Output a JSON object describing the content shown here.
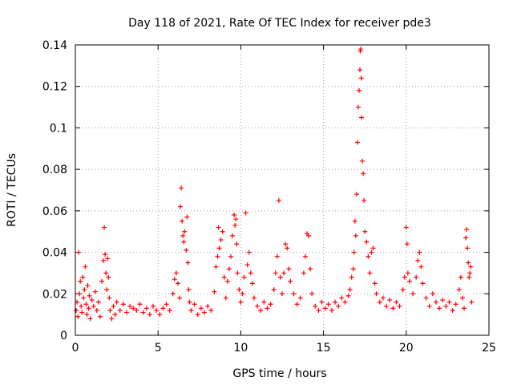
{
  "chart_data": {
    "type": "scatter",
    "title": "Day 118 of 2021, Rate Of TEC Index for receiver pde3",
    "xlabel": "GPS time / hours",
    "ylabel": "ROTI / TECUs",
    "xlim": [
      0,
      25
    ],
    "ylim": [
      0,
      0.14
    ],
    "x_ticks": [
      0,
      5,
      10,
      15,
      20,
      25
    ],
    "y_ticks": [
      0,
      0.02,
      0.04,
      0.06,
      0.08,
      0.1,
      0.12,
      0.14
    ],
    "x_tick_labels": [
      "0",
      "5",
      "10",
      "15",
      "20",
      "25"
    ],
    "y_tick_labels": [
      "0",
      "0.02",
      "0.04",
      "0.06",
      "0.08",
      "0.1",
      "0.12",
      "0.14"
    ],
    "grid": true,
    "marker": "+",
    "color": "#ff0000",
    "series": [
      {
        "name": "ROTI",
        "points": [
          [
            0.05,
            0.012
          ],
          [
            0.1,
            0.016
          ],
          [
            0.15,
            0.009
          ],
          [
            0.2,
            0.04
          ],
          [
            0.25,
            0.02
          ],
          [
            0.3,
            0.026
          ],
          [
            0.35,
            0.014
          ],
          [
            0.4,
            0.011
          ],
          [
            0.45,
            0.028
          ],
          [
            0.5,
            0.018
          ],
          [
            0.55,
            0.022
          ],
          [
            0.6,
            0.033
          ],
          [
            0.65,
            0.015
          ],
          [
            0.7,
            0.01
          ],
          [
            0.75,
            0.024
          ],
          [
            0.8,
            0.013
          ],
          [
            0.85,
            0.019
          ],
          [
            0.9,
            0.008
          ],
          [
            1.0,
            0.017
          ],
          [
            1.1,
            0.014
          ],
          [
            1.2,
            0.021
          ],
          [
            1.3,
            0.012
          ],
          [
            1.4,
            0.016
          ],
          [
            1.5,
            0.009
          ],
          [
            1.6,
            0.026
          ],
          [
            1.7,
            0.036
          ],
          [
            1.75,
            0.052
          ],
          [
            1.8,
            0.039
          ],
          [
            1.85,
            0.03
          ],
          [
            1.9,
            0.022
          ],
          [
            1.95,
            0.037
          ],
          [
            2.0,
            0.028
          ],
          [
            2.05,
            0.018
          ],
          [
            2.1,
            0.012
          ],
          [
            2.2,
            0.008
          ],
          [
            2.3,
            0.014
          ],
          [
            2.4,
            0.01
          ],
          [
            2.5,
            0.016
          ],
          [
            2.7,
            0.012
          ],
          [
            2.9,
            0.015
          ],
          [
            3.1,
            0.011
          ],
          [
            3.3,
            0.014
          ],
          [
            3.5,
            0.013
          ],
          [
            3.7,
            0.012
          ],
          [
            3.9,
            0.015
          ],
          [
            4.1,
            0.011
          ],
          [
            4.3,
            0.013
          ],
          [
            4.5,
            0.01
          ],
          [
            4.7,
            0.014
          ],
          [
            4.9,
            0.012
          ],
          [
            5.1,
            0.01
          ],
          [
            5.3,
            0.013
          ],
          [
            5.5,
            0.015
          ],
          [
            5.7,
            0.012
          ],
          [
            5.9,
            0.02
          ],
          [
            6.0,
            0.027
          ],
          [
            6.1,
            0.03
          ],
          [
            6.2,
            0.025
          ],
          [
            6.3,
            0.018
          ],
          [
            6.35,
            0.062
          ],
          [
            6.4,
            0.071
          ],
          [
            6.45,
            0.055
          ],
          [
            6.5,
            0.048
          ],
          [
            6.55,
            0.045
          ],
          [
            6.6,
            0.05
          ],
          [
            6.7,
            0.041
          ],
          [
            6.75,
            0.057
          ],
          [
            6.8,
            0.035
          ],
          [
            6.85,
            0.022
          ],
          [
            6.9,
            0.016
          ],
          [
            7.0,
            0.012
          ],
          [
            7.2,
            0.015
          ],
          [
            7.4,
            0.01
          ],
          [
            7.6,
            0.013
          ],
          [
            7.8,
            0.011
          ],
          [
            8.0,
            0.014
          ],
          [
            8.2,
            0.012
          ],
          [
            8.4,
            0.021
          ],
          [
            8.5,
            0.033
          ],
          [
            8.6,
            0.038
          ],
          [
            8.65,
            0.052
          ],
          [
            8.7,
            0.042
          ],
          [
            8.8,
            0.046
          ],
          [
            8.9,
            0.05
          ],
          [
            9.0,
            0.028
          ],
          [
            9.1,
            0.018
          ],
          [
            9.2,
            0.026
          ],
          [
            9.3,
            0.032
          ],
          [
            9.4,
            0.038
          ],
          [
            9.5,
            0.048
          ],
          [
            9.6,
            0.058
          ],
          [
            9.65,
            0.053
          ],
          [
            9.7,
            0.056
          ],
          [
            9.75,
            0.044
          ],
          [
            9.8,
            0.03
          ],
          [
            9.9,
            0.022
          ],
          [
            10.0,
            0.016
          ],
          [
            10.1,
            0.02
          ],
          [
            10.2,
            0.028
          ],
          [
            10.3,
            0.059
          ],
          [
            10.4,
            0.034
          ],
          [
            10.5,
            0.04
          ],
          [
            10.6,
            0.03
          ],
          [
            10.7,
            0.025
          ],
          [
            10.8,
            0.018
          ],
          [
            11.0,
            0.014
          ],
          [
            11.2,
            0.012
          ],
          [
            11.4,
            0.016
          ],
          [
            11.6,
            0.013
          ],
          [
            11.8,
            0.015
          ],
          [
            12.0,
            0.022
          ],
          [
            12.1,
            0.03
          ],
          [
            12.2,
            0.038
          ],
          [
            12.3,
            0.065
          ],
          [
            12.4,
            0.028
          ],
          [
            12.5,
            0.02
          ],
          [
            12.6,
            0.03
          ],
          [
            12.7,
            0.044
          ],
          [
            12.8,
            0.042
          ],
          [
            12.9,
            0.032
          ],
          [
            13.0,
            0.026
          ],
          [
            13.2,
            0.02
          ],
          [
            13.4,
            0.015
          ],
          [
            13.6,
            0.018
          ],
          [
            13.8,
            0.03
          ],
          [
            13.9,
            0.038
          ],
          [
            14.0,
            0.049
          ],
          [
            14.1,
            0.048
          ],
          [
            14.2,
            0.032
          ],
          [
            14.3,
            0.02
          ],
          [
            14.5,
            0.014
          ],
          [
            14.7,
            0.012
          ],
          [
            14.9,
            0.016
          ],
          [
            15.1,
            0.013
          ],
          [
            15.3,
            0.015
          ],
          [
            15.5,
            0.012
          ],
          [
            15.7,
            0.016
          ],
          [
            15.9,
            0.014
          ],
          [
            16.1,
            0.018
          ],
          [
            16.3,
            0.016
          ],
          [
            16.5,
            0.019
          ],
          [
            16.6,
            0.022
          ],
          [
            16.7,
            0.028
          ],
          [
            16.8,
            0.032
          ],
          [
            16.85,
            0.04
          ],
          [
            16.9,
            0.055
          ],
          [
            16.95,
            0.048
          ],
          [
            17.0,
            0.068
          ],
          [
            17.05,
            0.093
          ],
          [
            17.1,
            0.11
          ],
          [
            17.15,
            0.118
          ],
          [
            17.2,
            0.128
          ],
          [
            17.22,
            0.137
          ],
          [
            17.25,
            0.138
          ],
          [
            17.28,
            0.124
          ],
          [
            17.3,
            0.105
          ],
          [
            17.35,
            0.084
          ],
          [
            17.4,
            0.078
          ],
          [
            17.45,
            0.065
          ],
          [
            17.5,
            0.05
          ],
          [
            17.6,
            0.045
          ],
          [
            17.7,
            0.038
          ],
          [
            17.8,
            0.03
          ],
          [
            17.9,
            0.04
          ],
          [
            18.0,
            0.042
          ],
          [
            18.1,
            0.025
          ],
          [
            18.2,
            0.02
          ],
          [
            18.4,
            0.016
          ],
          [
            18.6,
            0.018
          ],
          [
            18.8,
            0.014
          ],
          [
            19.0,
            0.017
          ],
          [
            19.2,
            0.013
          ],
          [
            19.4,
            0.016
          ],
          [
            19.6,
            0.014
          ],
          [
            19.8,
            0.022
          ],
          [
            19.9,
            0.028
          ],
          [
            20.0,
            0.052
          ],
          [
            20.05,
            0.044
          ],
          [
            20.1,
            0.03
          ],
          [
            20.2,
            0.026
          ],
          [
            20.4,
            0.02
          ],
          [
            20.6,
            0.028
          ],
          [
            20.7,
            0.036
          ],
          [
            20.8,
            0.04
          ],
          [
            20.9,
            0.033
          ],
          [
            21.0,
            0.025
          ],
          [
            21.2,
            0.018
          ],
          [
            21.4,
            0.014
          ],
          [
            21.6,
            0.02
          ],
          [
            21.8,
            0.016
          ],
          [
            22.0,
            0.013
          ],
          [
            22.2,
            0.017
          ],
          [
            22.4,
            0.014
          ],
          [
            22.6,
            0.016
          ],
          [
            22.8,
            0.012
          ],
          [
            23.0,
            0.015
          ],
          [
            23.2,
            0.022
          ],
          [
            23.3,
            0.028
          ],
          [
            23.4,
            0.018
          ],
          [
            23.5,
            0.013
          ],
          [
            23.6,
            0.047
          ],
          [
            23.65,
            0.051
          ],
          [
            23.7,
            0.042
          ],
          [
            23.75,
            0.035
          ],
          [
            23.8,
            0.028
          ],
          [
            23.85,
            0.03
          ],
          [
            23.9,
            0.033
          ],
          [
            23.95,
            0.016
          ]
        ]
      }
    ]
  }
}
